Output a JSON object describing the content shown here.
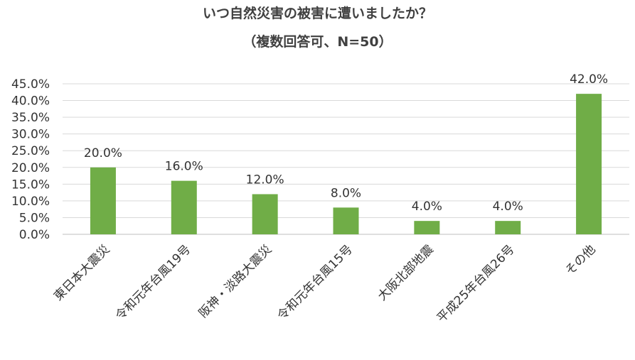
{
  "chart_data": {
    "type": "bar",
    "title": "いつ自然災害の被害に遭いましたか？",
    "subtitle": "（複数回答可、N=50）",
    "categories": [
      "東日本大震災",
      "令和元年台風19号",
      "阪神・淡路大震災",
      "令和元年台風15号",
      "大阪北部地震",
      "平成25年台風26号",
      "その他"
    ],
    "values": [
      20.0,
      16.0,
      12.0,
      8.0,
      4.0,
      4.0,
      42.0
    ],
    "data_labels": [
      "20.0%",
      "16.0%",
      "12.0%",
      "8.0%",
      "4.0%",
      "4.0%",
      "42.0%"
    ],
    "yticks": [
      "0.0%",
      "5.0%",
      "10.0%",
      "15.0%",
      "20.0%",
      "25.0%",
      "30.0%",
      "35.0%",
      "40.0%",
      "45.0%"
    ],
    "ylim": [
      0,
      45
    ],
    "grid": true,
    "bar_color": "#70ad47",
    "grid_color": "#d9d9d9"
  }
}
